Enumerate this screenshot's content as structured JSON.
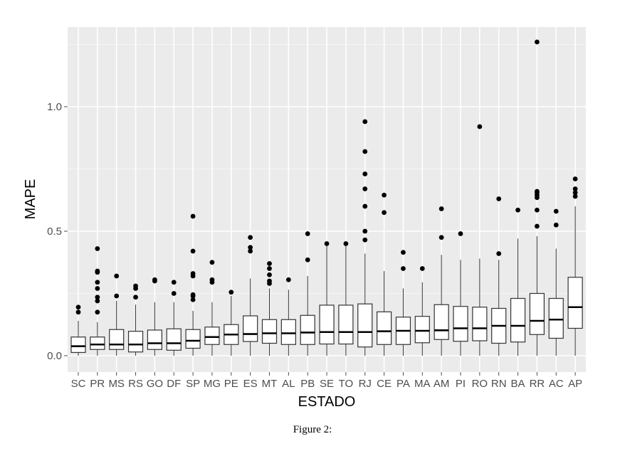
{
  "chart_data": {
    "type": "boxplot",
    "title": "",
    "xlabel": "ESTADO",
    "ylabel": "MAPE",
    "ylim": [
      -0.03,
      1.3
    ],
    "yticks": [
      0.0,
      0.5,
      1.0
    ],
    "ytick_labels": [
      "0.0",
      "0.5",
      "1.0"
    ],
    "grid": true,
    "colors": {
      "panel": "#ebebeb",
      "grid_major": "#ffffff",
      "grid_minor": "#f5f5f5",
      "box_fill": "#ffffff",
      "box_stroke": "#333333",
      "outlier": "#000000"
    },
    "categories": [
      "SC",
      "PR",
      "MS",
      "RS",
      "GO",
      "DF",
      "SP",
      "MG",
      "PE",
      "ES",
      "MT",
      "AL",
      "PB",
      "SE",
      "TO",
      "RJ",
      "CE",
      "PA",
      "MA",
      "AM",
      "PI",
      "RO",
      "RN",
      "BA",
      "RR",
      "AC",
      "AP"
    ],
    "boxes": [
      {
        "min": 0.0,
        "q1": 0.013,
        "median": 0.038,
        "q3": 0.075,
        "max": 0.14,
        "outliers": [
          0.175,
          0.195
        ]
      },
      {
        "min": 0.0,
        "q1": 0.025,
        "median": 0.045,
        "q3": 0.075,
        "max": 0.135,
        "outliers": [
          0.175,
          0.22,
          0.235,
          0.27,
          0.295,
          0.335,
          0.34,
          0.43
        ]
      },
      {
        "min": 0.0,
        "q1": 0.025,
        "median": 0.045,
        "q3": 0.105,
        "max": 0.22,
        "outliers": [
          0.24,
          0.32
        ]
      },
      {
        "min": 0.0,
        "q1": 0.015,
        "median": 0.045,
        "q3": 0.098,
        "max": 0.205,
        "outliers": [
          0.235,
          0.27,
          0.28
        ]
      },
      {
        "min": 0.0,
        "q1": 0.025,
        "median": 0.05,
        "q3": 0.103,
        "max": 0.215,
        "outliers": [
          0.3,
          0.305
        ]
      },
      {
        "min": 0.0,
        "q1": 0.022,
        "median": 0.05,
        "q3": 0.108,
        "max": 0.215,
        "outliers": [
          0.25,
          0.295
        ]
      },
      {
        "min": 0.0,
        "q1": 0.03,
        "median": 0.06,
        "q3": 0.105,
        "max": 0.18,
        "outliers": [
          0.225,
          0.24,
          0.245,
          0.32,
          0.33,
          0.42,
          0.56
        ]
      },
      {
        "min": 0.0,
        "q1": 0.045,
        "median": 0.075,
        "q3": 0.115,
        "max": 0.215,
        "outliers": [
          0.295,
          0.305,
          0.375
        ]
      },
      {
        "min": 0.0,
        "q1": 0.045,
        "median": 0.085,
        "q3": 0.125,
        "max": 0.24,
        "outliers": [
          0.255
        ]
      },
      {
        "min": 0.0,
        "q1": 0.057,
        "median": 0.087,
        "q3": 0.16,
        "max": 0.31,
        "outliers": [
          0.42,
          0.435,
          0.475
        ]
      },
      {
        "min": 0.0,
        "q1": 0.05,
        "median": 0.09,
        "q3": 0.145,
        "max": 0.27,
        "outliers": [
          0.29,
          0.3,
          0.325,
          0.35,
          0.37
        ]
      },
      {
        "min": 0.0,
        "q1": 0.045,
        "median": 0.09,
        "q3": 0.145,
        "max": 0.265,
        "outliers": [
          0.305
        ]
      },
      {
        "min": 0.0,
        "q1": 0.045,
        "median": 0.093,
        "q3": 0.162,
        "max": 0.32,
        "outliers": [
          0.385,
          0.49
        ]
      },
      {
        "min": 0.0,
        "q1": 0.047,
        "median": 0.095,
        "q3": 0.203,
        "max": 0.44,
        "outliers": [
          0.45
        ]
      },
      {
        "min": 0.0,
        "q1": 0.047,
        "median": 0.095,
        "q3": 0.203,
        "max": 0.44,
        "outliers": [
          0.45
        ]
      },
      {
        "min": 0.0,
        "q1": 0.035,
        "median": 0.095,
        "q3": 0.208,
        "max": 0.41,
        "outliers": [
          0.465,
          0.5,
          0.6,
          0.67,
          0.73,
          0.82,
          0.94
        ]
      },
      {
        "min": 0.0,
        "q1": 0.045,
        "median": 0.098,
        "q3": 0.176,
        "max": 0.34,
        "outliers": [
          0.575,
          0.645
        ]
      },
      {
        "min": 0.0,
        "q1": 0.045,
        "median": 0.1,
        "q3": 0.155,
        "max": 0.27,
        "outliers": [
          0.35,
          0.415
        ]
      },
      {
        "min": 0.0,
        "q1": 0.052,
        "median": 0.1,
        "q3": 0.158,
        "max": 0.295,
        "outliers": [
          0.35
        ]
      },
      {
        "min": 0.0,
        "q1": 0.065,
        "median": 0.102,
        "q3": 0.205,
        "max": 0.405,
        "outliers": [
          0.475,
          0.59
        ]
      },
      {
        "min": 0.0,
        "q1": 0.058,
        "median": 0.11,
        "q3": 0.198,
        "max": 0.385,
        "outliers": [
          0.49
        ]
      },
      {
        "min": 0.0,
        "q1": 0.06,
        "median": 0.11,
        "q3": 0.195,
        "max": 0.39,
        "outliers": [
          0.92
        ]
      },
      {
        "min": 0.0,
        "q1": 0.05,
        "median": 0.12,
        "q3": 0.19,
        "max": 0.385,
        "outliers": [
          0.41,
          0.63
        ]
      },
      {
        "min": 0.0,
        "q1": 0.055,
        "median": 0.12,
        "q3": 0.23,
        "max": 0.47,
        "outliers": [
          0.585
        ]
      },
      {
        "min": 0.0,
        "q1": 0.085,
        "median": 0.14,
        "q3": 0.25,
        "max": 0.48,
        "outliers": [
          0.52,
          0.585,
          0.635,
          0.645,
          0.655,
          0.66,
          1.26
        ]
      },
      {
        "min": 0.0,
        "q1": 0.07,
        "median": 0.145,
        "q3": 0.23,
        "max": 0.43,
        "outliers": [
          0.525,
          0.58
        ]
      },
      {
        "min": 0.0,
        "q1": 0.11,
        "median": 0.195,
        "q3": 0.315,
        "max": 0.6,
        "outliers": [
          0.64,
          0.655,
          0.67,
          0.71
        ]
      }
    ]
  },
  "caption": "Figure 2:"
}
